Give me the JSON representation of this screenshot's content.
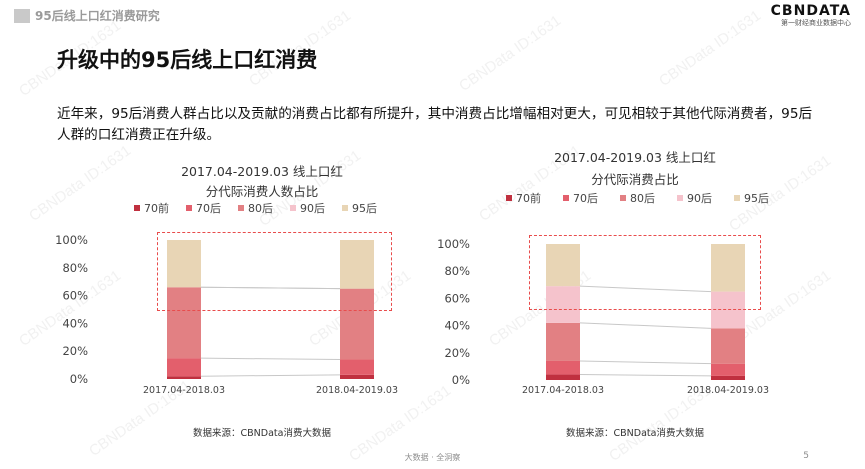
{
  "header": {
    "section_label": "95后线上口红消费研究",
    "logo_main": "CBNDATA",
    "logo_sub": "第一财经商业数据中心"
  },
  "page_title": "升级中的95后线上口红消费",
  "intro_text": "近年来，95后消费人群占比以及贡献的消费占比都有所提升，其中消费占比增幅相对更大，可见相较于其他代际消费者，95后人群的口红消费正在升级。",
  "watermark_text": "CBNData ID:1631",
  "footer": {
    "text": "大数据 · 全洞察",
    "page_number": "5"
  },
  "colors": {
    "70前": "#c0303f",
    "70后": "#e35f6c",
    "80后": "#e28083",
    "90后": "#f5c3cc",
    "95后": "#e8d5b5",
    "highlight": "#e84c4c",
    "connector": "#c8c8c8"
  },
  "chart_data": [
    {
      "type": "bar",
      "stacked": true,
      "title": "2017.04-2019.03 线上口红",
      "subtitle": "分代际消费人数占比",
      "categories": [
        "2017.04-2018.03",
        "2018.04-2019.03"
      ],
      "series": [
        {
          "name": "70前",
          "values": [
            2,
            3
          ]
        },
        {
          "name": "70后",
          "values": [
            13,
            11
          ]
        },
        {
          "name": "80后",
          "values": [
            51,
            51
          ]
        },
        {
          "name": "90后",
          "values": [
            0,
            0
          ]
        },
        {
          "name": "95后",
          "values": [
            34,
            35
          ]
        }
      ],
      "yticks": [
        "0%",
        "20%",
        "40%",
        "60%",
        "80%",
        "100%"
      ],
      "ylim": [
        0,
        100
      ],
      "source": "数据来源：CBNData消费大数据"
    },
    {
      "type": "bar",
      "stacked": true,
      "title": "2017.04-2019.03 线上口红",
      "subtitle": "分代际消费占比",
      "categories": [
        "2017.04-2018.03",
        "2018.04-2019.03"
      ],
      "series": [
        {
          "name": "70前",
          "values": [
            4,
            3
          ]
        },
        {
          "name": "70后",
          "values": [
            10,
            9
          ]
        },
        {
          "name": "80后",
          "values": [
            28,
            26
          ]
        },
        {
          "name": "90后",
          "values": [
            27,
            27
          ]
        },
        {
          "name": "95后",
          "values": [
            31,
            35
          ]
        }
      ],
      "yticks": [
        "0%",
        "20%",
        "40%",
        "60%",
        "80%",
        "100%"
      ],
      "ylim": [
        0,
        100
      ],
      "source": "数据来源：CBNData消费大数据"
    }
  ]
}
